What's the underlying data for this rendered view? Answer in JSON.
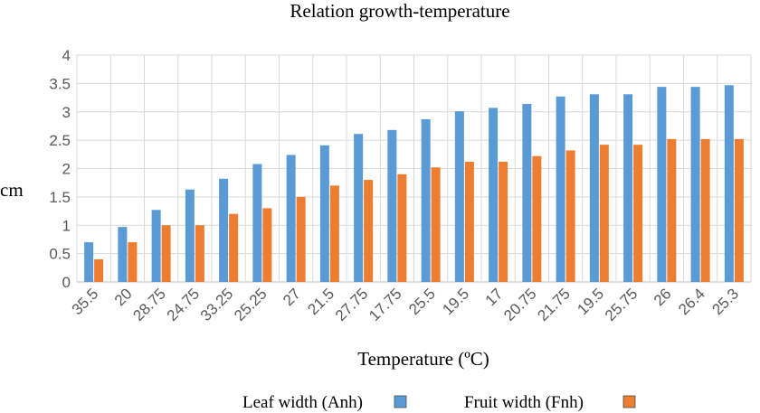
{
  "chart_data": {
    "type": "bar",
    "title": "Relation growth-temperature",
    "xlabel": "Temperature (ºC)",
    "ylabel": "cm",
    "ylim": [
      0,
      4
    ],
    "yticks": [
      "0",
      "0.5",
      "1",
      "1.5",
      "2",
      "2.5",
      "3",
      "3.5",
      "4"
    ],
    "grid": true,
    "legend_position": "bottom",
    "categories": [
      "35.5",
      "20",
      "28.75",
      "24.75",
      "33.25",
      "25.25",
      "27",
      "21.5",
      "27.75",
      "17.75",
      "25.5",
      "19.5",
      "17",
      "20.75",
      "21.75",
      "19.5",
      "25.75",
      "26",
      "26.4",
      "25.3"
    ],
    "series": [
      {
        "name": "Leaf width (Anh)",
        "color": "#5b9bd5",
        "values": [
          0.7,
          0.97,
          1.27,
          1.63,
          1.82,
          2.08,
          2.24,
          2.41,
          2.61,
          2.68,
          2.87,
          3.01,
          3.07,
          3.14,
          3.27,
          3.31,
          3.31,
          3.44,
          3.44,
          3.47
        ]
      },
      {
        "name": "Fruit width (Fnh)",
        "color": "#ed7d31",
        "values": [
          0.4,
          0.7,
          1.0,
          1.0,
          1.2,
          1.3,
          1.5,
          1.7,
          1.8,
          1.9,
          2.02,
          2.12,
          2.12,
          2.22,
          2.32,
          2.42,
          2.42,
          2.52,
          2.52,
          2.52
        ]
      }
    ]
  }
}
